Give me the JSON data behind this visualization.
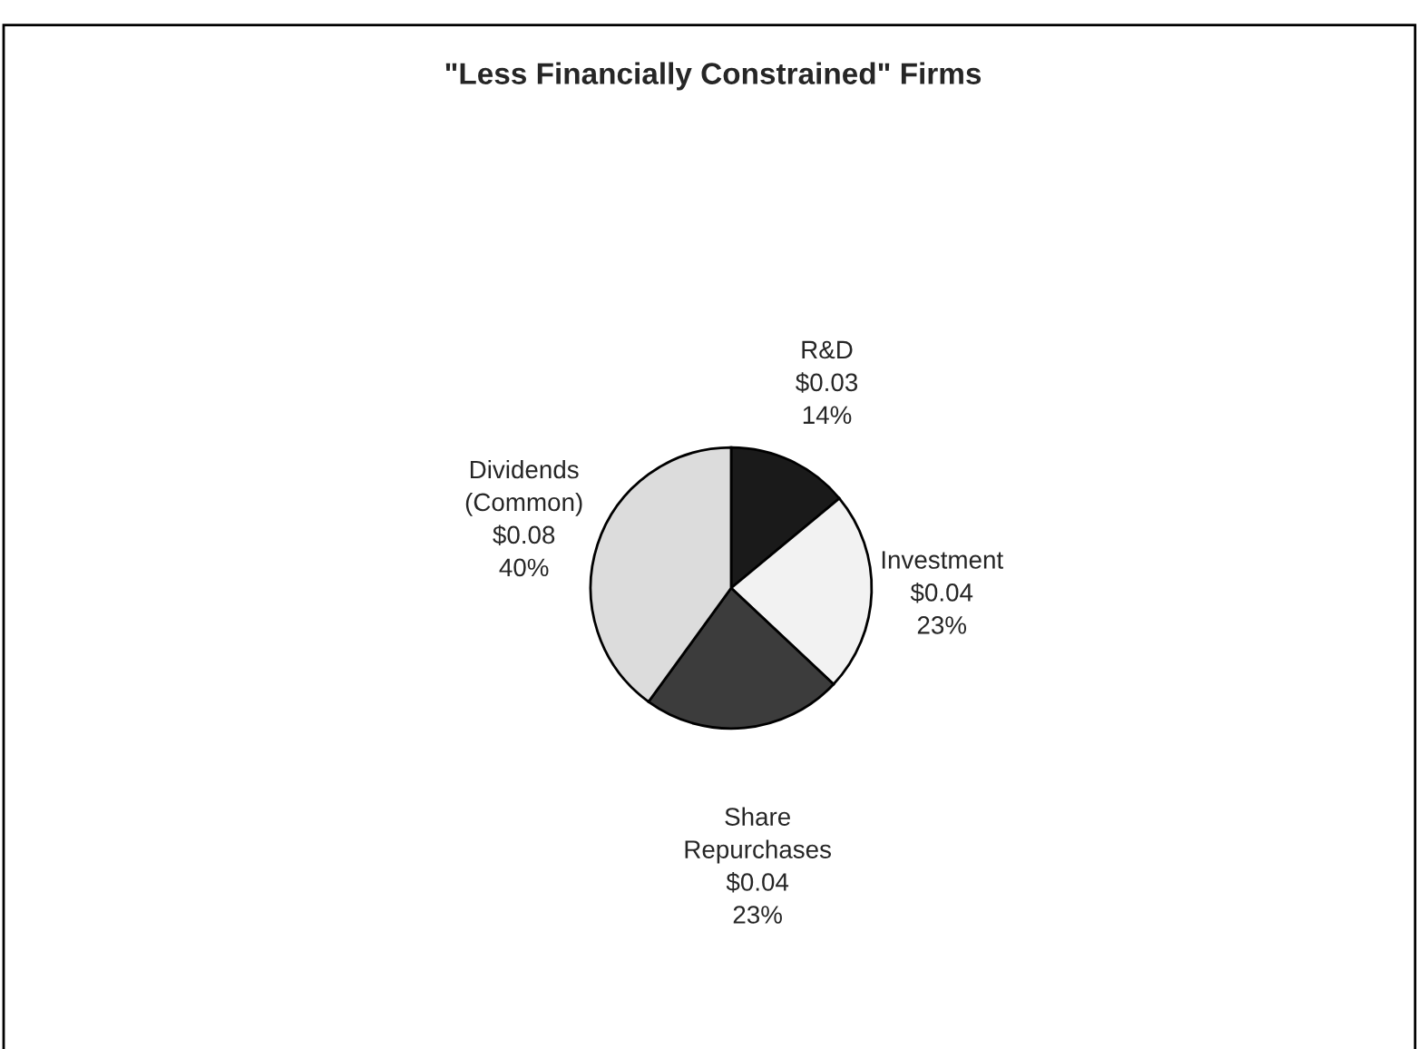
{
  "chart_data": {
    "type": "pie",
    "title": "\"Less Financially Constrained\" Firms",
    "categories": [
      "R&D",
      "Investment",
      "Share\nRepurchases",
      "Dividends\n(Common)"
    ],
    "values": [
      14,
      23,
      23,
      40
    ],
    "value_labels": [
      "$0.03\n14%",
      "$0.04\n23%",
      "$0.04\n23%",
      "$0.08\n40%"
    ],
    "colors": [
      "#1a1a1a",
      "#f2f2f2",
      "#3c3c3c",
      "#dcdcdc"
    ],
    "legend": false
  }
}
